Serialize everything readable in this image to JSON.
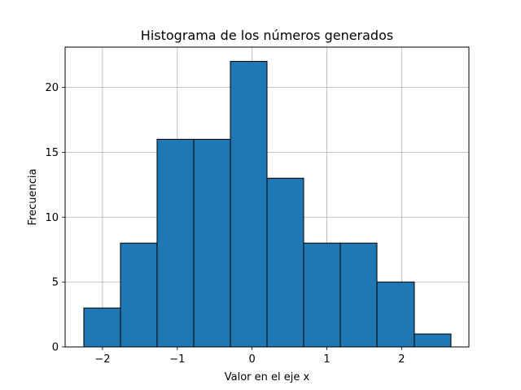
{
  "chart_data": {
    "type": "bar",
    "title": "Histograma de los números generados",
    "xlabel": "Valor en el eje x",
    "ylabel": "Frecuencia",
    "bin_edges": [
      -2.25,
      -1.76,
      -1.27,
      -0.78,
      -0.29,
      0.2,
      0.69,
      1.18,
      1.67,
      2.17,
      2.66
    ],
    "values": [
      3,
      8,
      16,
      16,
      22,
      13,
      8,
      8,
      5,
      1
    ],
    "xlim": [
      -2.5,
      2.9
    ],
    "ylim": [
      0,
      23.1
    ],
    "xticks": [
      -2,
      -1,
      0,
      1,
      2
    ],
    "xtick_labels": [
      "−2",
      "−1",
      "0",
      "1",
      "2"
    ],
    "yticks": [
      0,
      5,
      10,
      15,
      20
    ],
    "ytick_labels": [
      "0",
      "5",
      "10",
      "15",
      "20"
    ],
    "grid": true,
    "bar_color": "#1f77b4",
    "edge_color": "#000000"
  }
}
